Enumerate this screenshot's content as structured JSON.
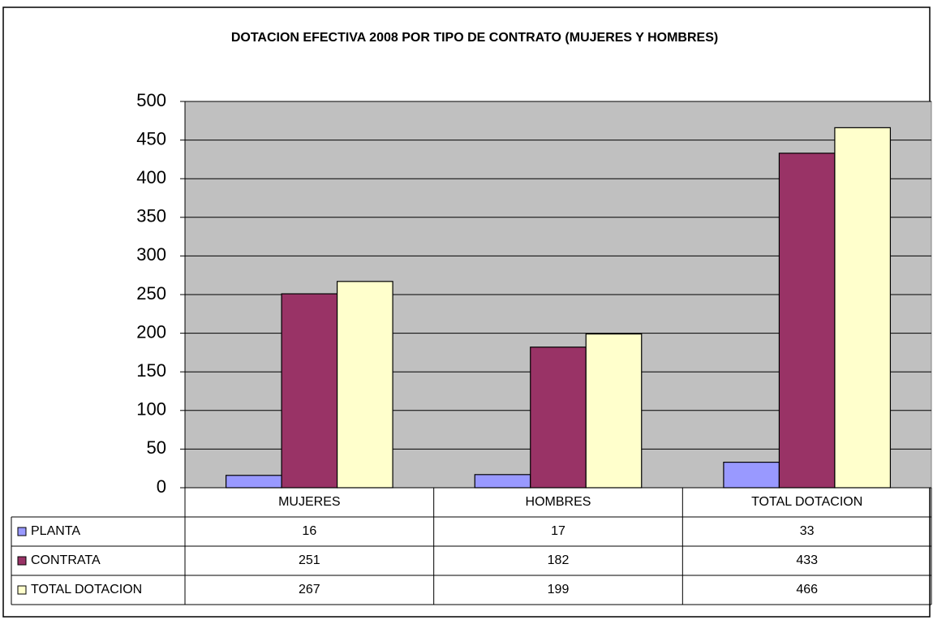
{
  "chart_data": {
    "type": "bar",
    "title": "DOTACION EFECTIVA 2008 POR TIPO DE CONTRATO (MUJERES Y HOMBRES)",
    "categories": [
      "MUJERES",
      "HOMBRES",
      "TOTAL DOTACION"
    ],
    "series": [
      {
        "name": "PLANTA",
        "color": "#9999ff",
        "values": [
          16,
          17,
          33
        ]
      },
      {
        "name": "CONTRATA",
        "color": "#993366",
        "values": [
          251,
          182,
          433
        ]
      },
      {
        "name": "TOTAL DOTACION",
        "color": "#ffffcc",
        "values": [
          267,
          199,
          466
        ]
      }
    ],
    "ylim": [
      0,
      500
    ],
    "yticks": [
      0,
      50,
      100,
      150,
      200,
      250,
      300,
      350,
      400,
      450,
      500
    ],
    "grid": true,
    "data_table": true
  }
}
